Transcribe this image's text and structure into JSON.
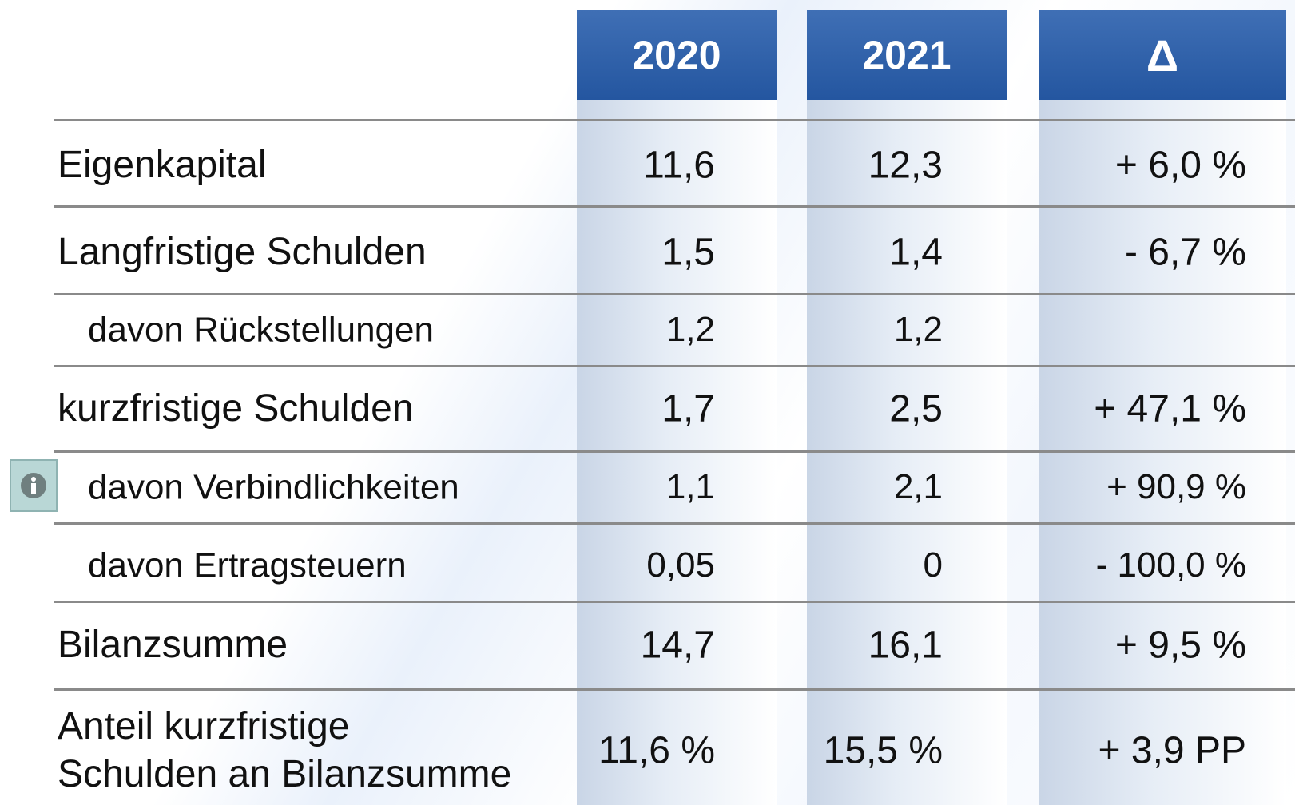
{
  "table": {
    "columns": [
      "2020",
      "2021",
      "Δ"
    ],
    "rows": [
      {
        "label": [
          "Eigenkapital"
        ],
        "cells": [
          "11,6",
          "12,3",
          "+ 6,0 %"
        ],
        "level": 0
      },
      {
        "label": [
          "Langfristige Schulden"
        ],
        "cells": [
          "1,5",
          "1,4",
          "- 6,7 %"
        ],
        "level": 0
      },
      {
        "label": [
          "davon Rückstellungen"
        ],
        "cells": [
          "1,2",
          "1,2",
          null
        ],
        "level": 1
      },
      {
        "label": [
          "kurzfristige Schulden"
        ],
        "cells": [
          "1,7",
          "2,5",
          "+ 47,1 %"
        ],
        "level": 0
      },
      {
        "label": [
          "davon Verbindlichkeiten"
        ],
        "cells": [
          "1,1",
          "2,1",
          "+ 90,9 %"
        ],
        "level": 1
      },
      {
        "label": [
          "davon Ertragsteuern"
        ],
        "cells": [
          "0,05",
          "0",
          "- 100,0 %"
        ],
        "level": 1
      },
      {
        "label": [
          "Bilanzsumme"
        ],
        "cells": [
          "14,7",
          "16,1",
          "+ 9,5 %"
        ],
        "level": 0
      },
      {
        "label": [
          "Anteil kurzfristige",
          "Schulden an Bilanzsumme"
        ],
        "cells": [
          "11,6 %",
          "15,5 %",
          "+ 3,9 PP"
        ],
        "level": 0
      }
    ]
  }
}
